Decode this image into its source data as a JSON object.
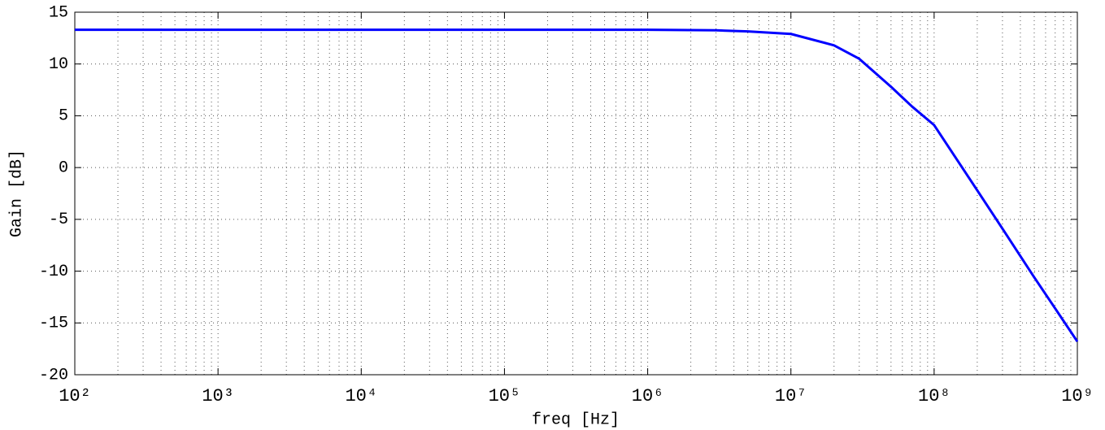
{
  "chart_data": {
    "type": "line",
    "xlabel": "freq [Hz]",
    "ylabel": "Gain [dB]",
    "xscale": "log",
    "grid": true,
    "minor_grid": true,
    "xlim": [
      100,
      1000000000
    ],
    "ylim": [
      -20,
      15
    ],
    "xticks": [
      {
        "value": 100,
        "label": "10²"
      },
      {
        "value": 1000,
        "label": "10³"
      },
      {
        "value": 10000,
        "label": "10⁴"
      },
      {
        "value": 100000,
        "label": "10⁵"
      },
      {
        "value": 1000000,
        "label": "10⁶"
      },
      {
        "value": 10000000,
        "label": "10⁷"
      },
      {
        "value": 100000000,
        "label": "10⁸"
      },
      {
        "value": 1000000000,
        "label": "10⁹"
      }
    ],
    "yticks": [
      -20,
      -15,
      -10,
      -5,
      0,
      5,
      10,
      15
    ],
    "x": [
      100,
      1000,
      10000,
      100000,
      1000000,
      3000000,
      5000000,
      10000000,
      20000000,
      30000000,
      50000000,
      70000000,
      100000000,
      200000000,
      300000000,
      500000000,
      700000000,
      1000000000
    ],
    "series": [
      {
        "color": "#0000ff",
        "values": [
          13.3,
          13.3,
          13.3,
          13.3,
          13.3,
          13.25,
          13.15,
          12.9,
          11.8,
          10.5,
          7.8,
          5.9,
          4.1,
          -2.2,
          -5.9,
          -10.6,
          -13.6,
          -16.8
        ]
      }
    ]
  }
}
